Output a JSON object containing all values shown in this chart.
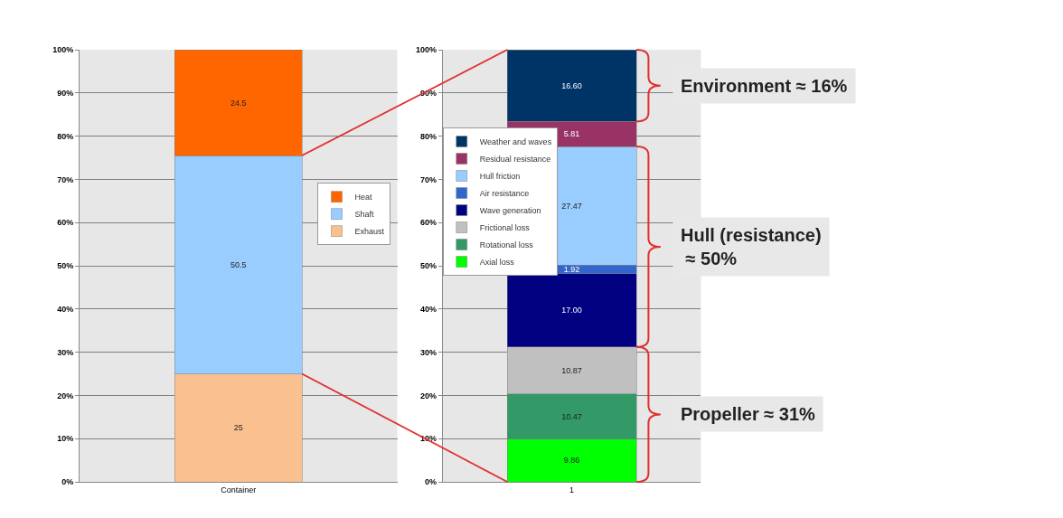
{
  "chart_data": [
    {
      "type": "bar",
      "stacked": true,
      "categories": [
        "Container"
      ],
      "series": [
        {
          "name": "Exhaust",
          "color": "#fac090",
          "values": [
            25
          ]
        },
        {
          "name": "Shaft",
          "color": "#99ccff",
          "values": [
            50.5
          ]
        },
        {
          "name": "Heat",
          "color": "#ff6600",
          "values": [
            24.5
          ]
        }
      ],
      "ylim": [
        0,
        100
      ],
      "yticks": [
        {
          "value": 0,
          "label": "0%"
        },
        {
          "value": 10,
          "label": "10%"
        },
        {
          "value": 20,
          "label": "20%"
        },
        {
          "value": 30,
          "label": "30%"
        },
        {
          "value": 40,
          "label": "40%"
        },
        {
          "value": 50,
          "label": "50%"
        },
        {
          "value": 60,
          "label": "60%"
        },
        {
          "value": 70,
          "label": "70%"
        },
        {
          "value": 80,
          "label": "80%"
        },
        {
          "value": 90,
          "label": "90%"
        },
        {
          "value": 100,
          "label": "100%"
        }
      ],
      "grid": "y",
      "legend": "right",
      "data_labels": true
    },
    {
      "type": "bar",
      "stacked": true,
      "categories": [
        "1"
      ],
      "series": [
        {
          "name": "Axial loss",
          "color": "#00ff00",
          "values": [
            9.86
          ],
          "value_labels": [
            "9.86"
          ]
        },
        {
          "name": "Rotational loss",
          "color": "#339966",
          "values": [
            10.47
          ],
          "value_labels": [
            "10.47"
          ]
        },
        {
          "name": "Frictional loss",
          "color": "#c0c0c0",
          "values": [
            10.87
          ],
          "value_labels": [
            "10.87"
          ]
        },
        {
          "name": "Wave generation",
          "color": "#000080",
          "values": [
            17.0
          ],
          "value_labels": [
            "17.00"
          ]
        },
        {
          "name": "Air resistance",
          "color": "#3366cc",
          "values": [
            1.92
          ],
          "value_labels": [
            "1.92"
          ]
        },
        {
          "name": "Hull friction",
          "color": "#99ccff",
          "values": [
            27.47
          ],
          "value_labels": [
            "27.47"
          ]
        },
        {
          "name": "Residual resistance",
          "color": "#993366",
          "values": [
            5.81
          ],
          "value_labels": [
            "5.81"
          ]
        },
        {
          "name": "Weather and waves",
          "color": "#003366",
          "values": [
            16.6
          ],
          "value_labels": [
            "16.60"
          ]
        }
      ],
      "ylim": [
        0,
        100
      ],
      "yticks": [
        {
          "value": 0,
          "label": "0%"
        },
        {
          "value": 10,
          "label": "10%"
        },
        {
          "value": 20,
          "label": "20%"
        },
        {
          "value": 30,
          "label": "30%"
        },
        {
          "value": 40,
          "label": "40%"
        },
        {
          "value": 50,
          "label": "50%"
        },
        {
          "value": 60,
          "label": "60%"
        },
        {
          "value": 70,
          "label": "70%"
        },
        {
          "value": 80,
          "label": "80%"
        },
        {
          "value": 90,
          "label": "90%"
        },
        {
          "value": 100,
          "label": "100%"
        }
      ],
      "grid": "y",
      "legend": "top left",
      "annotations": [
        "Environment ≈ 16%",
        "Hull (resistance)\n ≈ 50%",
        "Propeller ≈ 31%"
      ]
    }
  ]
}
